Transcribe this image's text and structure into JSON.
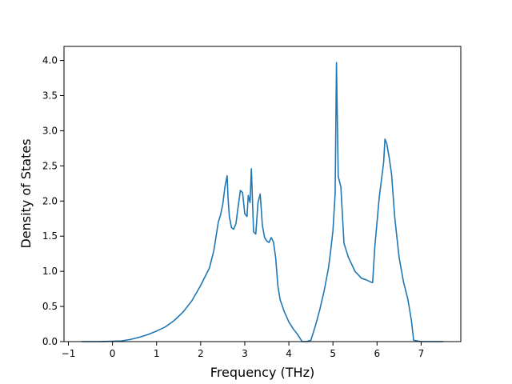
{
  "chart_data": {
    "type": "line",
    "title": "",
    "xlabel": "Frequency (THz)",
    "ylabel": "Density of States",
    "xlim": [
      -1.1,
      7.9
    ],
    "ylim": [
      0.0,
      4.2
    ],
    "xticks": [
      -1,
      0,
      1,
      2,
      3,
      4,
      5,
      6,
      7
    ],
    "xtick_labels": [
      "−1",
      "0",
      "1",
      "2",
      "3",
      "4",
      "5",
      "6",
      "7"
    ],
    "yticks": [
      0.0,
      0.5,
      1.0,
      1.5,
      2.0,
      2.5,
      3.0,
      3.5,
      4.0
    ],
    "ytick_labels": [
      "0.0",
      "0.5",
      "1.0",
      "1.5",
      "2.0",
      "2.5",
      "3.0",
      "3.5",
      "4.0"
    ],
    "grid": false,
    "colors": {
      "line": "#1f77b4",
      "axes": "#000000",
      "background": "#ffffff"
    },
    "series": [
      {
        "x": [
          -0.7,
          -0.3,
          0.0,
          0.2,
          0.4,
          0.6,
          0.8,
          1.0,
          1.2,
          1.4,
          1.6,
          1.8,
          2.0,
          2.2,
          2.3,
          2.4,
          2.45,
          2.5,
          2.55,
          2.6,
          2.62,
          2.65,
          2.7,
          2.75,
          2.8,
          2.85,
          2.9,
          2.95,
          3.0,
          3.05,
          3.08,
          3.12,
          3.15,
          3.2,
          3.25,
          3.3,
          3.35,
          3.4,
          3.45,
          3.5,
          3.55,
          3.6,
          3.65,
          3.7,
          3.75,
          3.8,
          3.9,
          4.0,
          4.1,
          4.2,
          4.25,
          4.3,
          4.4,
          4.5,
          4.6,
          4.7,
          4.8,
          4.9,
          4.95,
          5.0,
          5.05,
          5.08,
          5.12,
          5.18,
          5.25,
          5.35,
          5.5,
          5.65,
          5.75,
          5.85,
          5.9,
          5.95,
          6.0,
          6.05,
          6.1,
          6.15,
          6.18,
          6.22,
          6.28,
          6.33,
          6.4,
          6.5,
          6.6,
          6.7,
          6.78,
          6.83,
          7.0,
          7.2,
          7.5
        ],
        "y": [
          0.0,
          0.0,
          0.005,
          0.01,
          0.03,
          0.06,
          0.1,
          0.15,
          0.21,
          0.3,
          0.42,
          0.58,
          0.8,
          1.05,
          1.3,
          1.7,
          1.8,
          1.95,
          2.2,
          2.36,
          2.05,
          1.78,
          1.62,
          1.6,
          1.68,
          1.92,
          2.15,
          2.12,
          1.82,
          1.78,
          2.08,
          1.98,
          2.46,
          1.56,
          1.53,
          1.98,
          2.1,
          1.65,
          1.48,
          1.43,
          1.41,
          1.48,
          1.42,
          1.2,
          0.8,
          0.6,
          0.42,
          0.28,
          0.18,
          0.1,
          0.05,
          0.0,
          0.0,
          0.02,
          0.22,
          0.45,
          0.72,
          1.05,
          1.3,
          1.58,
          2.1,
          3.97,
          2.35,
          2.2,
          1.4,
          1.2,
          1.0,
          0.9,
          0.88,
          0.85,
          0.84,
          1.35,
          1.7,
          2.05,
          2.3,
          2.55,
          2.88,
          2.82,
          2.6,
          2.38,
          1.78,
          1.2,
          0.85,
          0.6,
          0.3,
          0.02,
          0.0,
          0.0,
          0.0
        ]
      }
    ]
  }
}
